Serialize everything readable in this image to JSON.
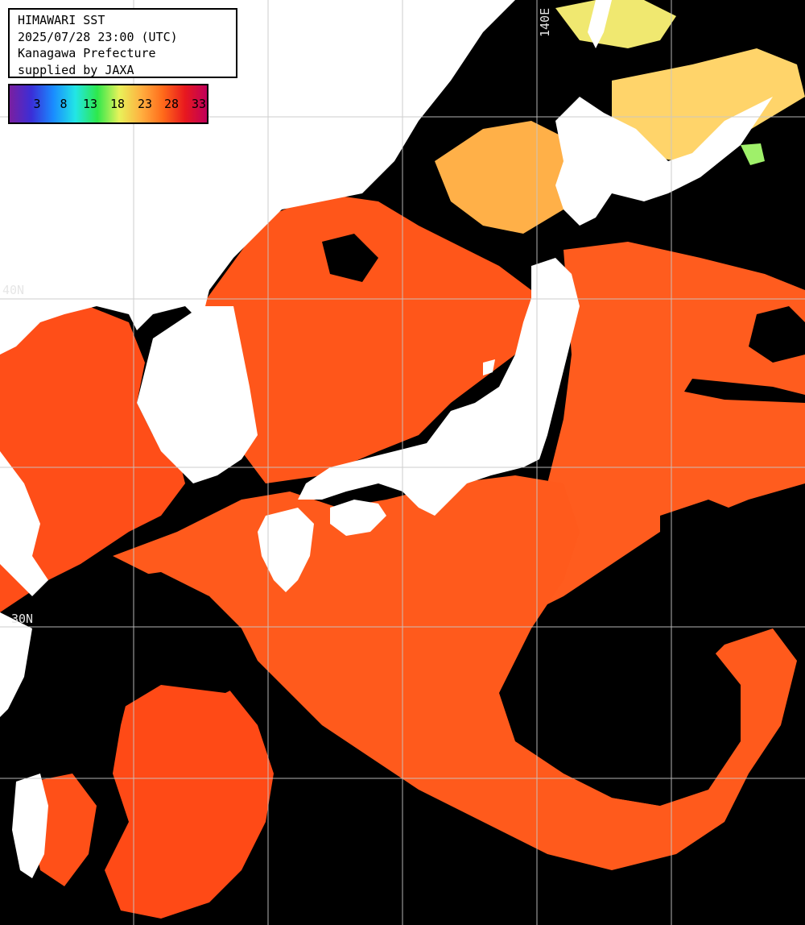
{
  "header": {
    "lines": [
      "HIMAWARI SST",
      "2025/07/28 23:00 (UTC)",
      "Kanagawa Prefecture",
      "supplied by JAXA"
    ]
  },
  "legend": {
    "ticks": [
      "3",
      "8",
      "13",
      "18",
      "23",
      "28",
      "33"
    ],
    "gradient_colors": [
      "#7a1fa0",
      "#3a2fd8",
      "#1a8cff",
      "#22e6e6",
      "#2ee84c",
      "#e8f25a",
      "#ffb040",
      "#ff6a1a",
      "#e8181e",
      "#c0005a"
    ]
  },
  "grid_labels": {
    "lon_140": "140E",
    "lat_40": "40N",
    "lat_30": "30N"
  },
  "colors": {
    "land": "#ffffff",
    "cloud_or_no_data": "#000000",
    "sea_warm": "#ff5a1c",
    "grid": "#c8c8c8"
  }
}
